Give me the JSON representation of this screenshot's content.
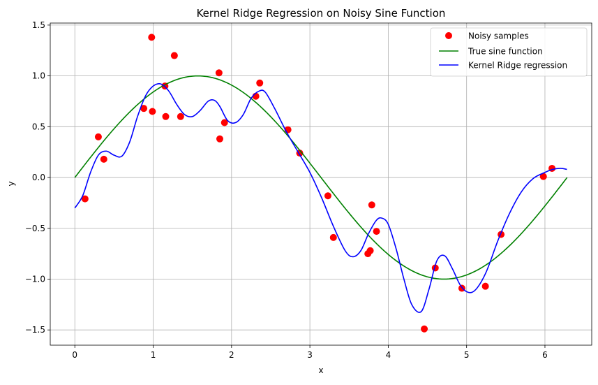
{
  "chart_data": {
    "type": "scatter",
    "title": "Kernel Ridge Regression on Noisy Sine Function",
    "xlabel": "x",
    "ylabel": "y",
    "xlim": [
      -0.314,
      6.597
    ],
    "ylim": [
      -1.65,
      1.52
    ],
    "xticks": [
      0,
      1,
      2,
      3,
      4,
      5,
      6
    ],
    "yticks": [
      -1.5,
      -1.0,
      -0.5,
      0.0,
      0.5,
      1.0,
      1.5
    ],
    "xtick_labels": [
      "0",
      "1",
      "2",
      "3",
      "4",
      "5",
      "6"
    ],
    "ytick_labels": [
      "−1.5",
      "−1.0",
      "−0.5",
      "0.0",
      "0.5",
      "1.0",
      "1.5"
    ],
    "grid": true,
    "legend_position": "top-right",
    "legend": [
      "Noisy samples",
      "True sine function",
      "Kernel Ridge regression"
    ],
    "colors": {
      "samples": "#ff0000",
      "true": "#008000",
      "krr": "#0000ff",
      "grid": "#b0b0b0"
    },
    "samples": [
      [
        0.13,
        -0.21
      ],
      [
        0.3,
        0.4
      ],
      [
        0.37,
        0.18
      ],
      [
        0.88,
        0.68
      ],
      [
        0.98,
        1.38
      ],
      [
        0.99,
        0.65
      ],
      [
        1.15,
        0.9
      ],
      [
        1.16,
        0.6
      ],
      [
        1.27,
        1.2
      ],
      [
        1.35,
        0.6
      ],
      [
        1.84,
        1.03
      ],
      [
        1.85,
        0.38
      ],
      [
        1.91,
        0.54
      ],
      [
        2.31,
        0.8
      ],
      [
        2.36,
        0.93
      ],
      [
        2.72,
        0.47
      ],
      [
        2.87,
        0.24
      ],
      [
        3.23,
        -0.18
      ],
      [
        3.3,
        -0.59
      ],
      [
        3.74,
        -0.75
      ],
      [
        3.77,
        -0.72
      ],
      [
        3.79,
        -0.27
      ],
      [
        3.85,
        -0.53
      ],
      [
        4.46,
        -1.49
      ],
      [
        4.6,
        -0.89
      ],
      [
        4.94,
        -1.09
      ],
      [
        5.24,
        -1.07
      ],
      [
        5.44,
        -0.56
      ],
      [
        5.98,
        0.01
      ],
      [
        6.09,
        0.09
      ]
    ],
    "true_function": {
      "name": "True sine function",
      "x_range": [
        0,
        6.283
      ]
    },
    "krr_curve": {
      "name": "Kernel Ridge regression",
      "points": [
        [
          0.0,
          -0.3
        ],
        [
          0.1,
          -0.18
        ],
        [
          0.2,
          0.05
        ],
        [
          0.3,
          0.22
        ],
        [
          0.4,
          0.26
        ],
        [
          0.5,
          0.22
        ],
        [
          0.6,
          0.21
        ],
        [
          0.7,
          0.35
        ],
        [
          0.8,
          0.6
        ],
        [
          0.9,
          0.8
        ],
        [
          1.0,
          0.9
        ],
        [
          1.1,
          0.92
        ],
        [
          1.2,
          0.85
        ],
        [
          1.3,
          0.72
        ],
        [
          1.4,
          0.62
        ],
        [
          1.5,
          0.6
        ],
        [
          1.6,
          0.66
        ],
        [
          1.7,
          0.75
        ],
        [
          1.78,
          0.76
        ],
        [
          1.85,
          0.7
        ],
        [
          1.95,
          0.56
        ],
        [
          2.05,
          0.54
        ],
        [
          2.15,
          0.62
        ],
        [
          2.25,
          0.78
        ],
        [
          2.35,
          0.85
        ],
        [
          2.43,
          0.84
        ],
        [
          2.55,
          0.68
        ],
        [
          2.7,
          0.45
        ],
        [
          2.85,
          0.25
        ],
        [
          3.0,
          0.05
        ],
        [
          3.15,
          -0.2
        ],
        [
          3.3,
          -0.48
        ],
        [
          3.45,
          -0.72
        ],
        [
          3.55,
          -0.78
        ],
        [
          3.65,
          -0.72
        ],
        [
          3.75,
          -0.55
        ],
        [
          3.85,
          -0.42
        ],
        [
          3.92,
          -0.4
        ],
        [
          4.0,
          -0.46
        ],
        [
          4.1,
          -0.7
        ],
        [
          4.2,
          -1.0
        ],
        [
          4.3,
          -1.25
        ],
        [
          4.42,
          -1.32
        ],
        [
          4.52,
          -1.1
        ],
        [
          4.62,
          -0.82
        ],
        [
          4.72,
          -0.77
        ],
        [
          4.82,
          -0.9
        ],
        [
          4.92,
          -1.06
        ],
        [
          5.02,
          -1.13
        ],
        [
          5.12,
          -1.1
        ],
        [
          5.25,
          -0.93
        ],
        [
          5.4,
          -0.62
        ],
        [
          5.55,
          -0.35
        ],
        [
          5.7,
          -0.14
        ],
        [
          5.85,
          -0.01
        ],
        [
          6.0,
          0.05
        ],
        [
          6.1,
          0.08
        ],
        [
          6.2,
          0.09
        ],
        [
          6.28,
          0.08
        ]
      ]
    }
  }
}
